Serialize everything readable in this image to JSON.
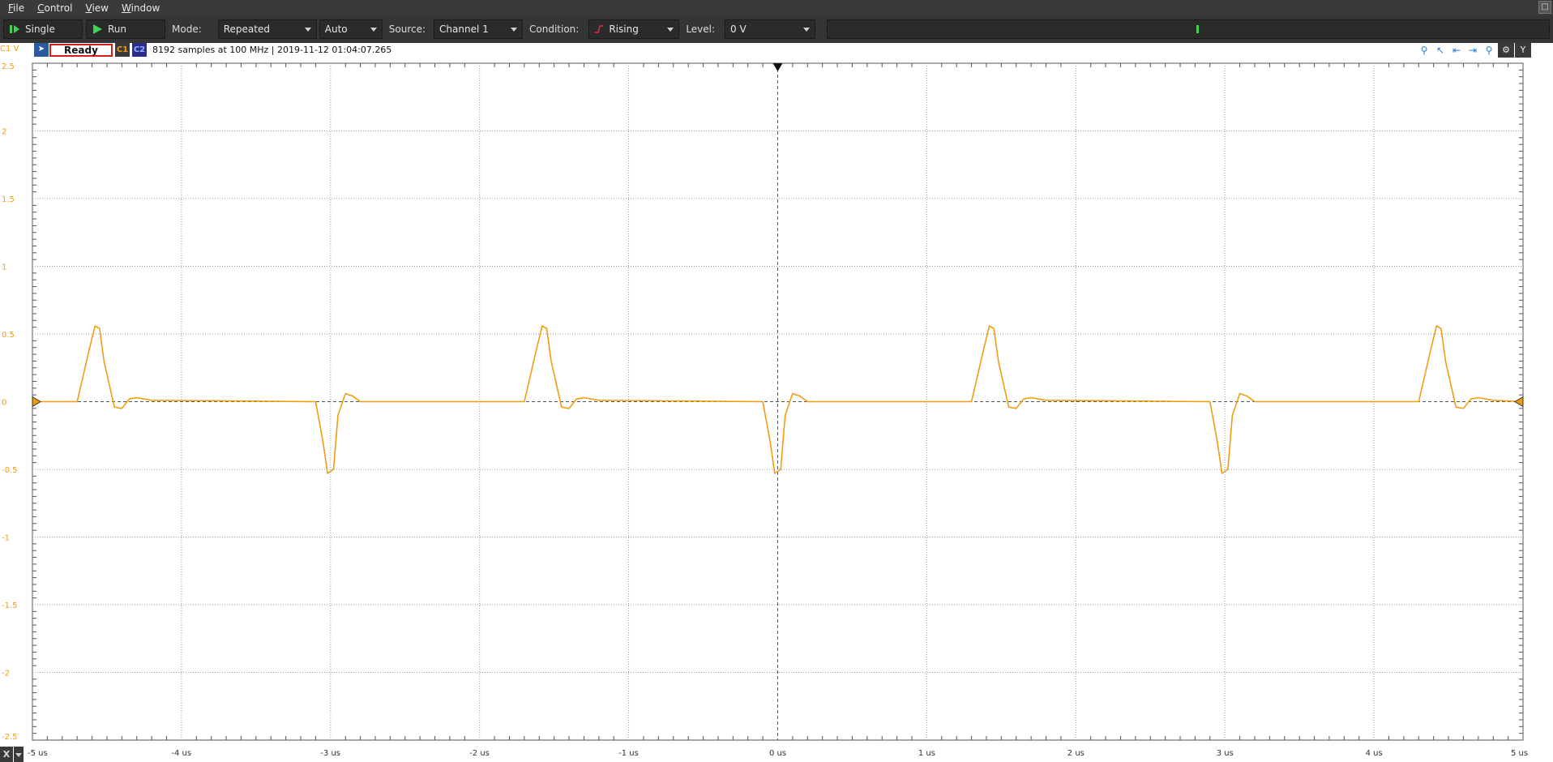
{
  "menubar": {
    "items": [
      {
        "label": "File",
        "mnemonic": "F",
        "rest": "ile"
      },
      {
        "label": "Control",
        "mnemonic": "C",
        "rest": "ontrol"
      },
      {
        "label": "View",
        "mnemonic": "V",
        "rest": "iew"
      },
      {
        "label": "Window",
        "mnemonic": "W",
        "rest": "indow"
      }
    ]
  },
  "toolbar": {
    "single_label": "Single",
    "run_label": "Run",
    "mode_label": "Mode:",
    "mode_value": "Repeated",
    "auto_value": "Auto",
    "source_label": "Source:",
    "source_value": "Channel 1",
    "condition_label": "Condition:",
    "condition_value": "Rising",
    "level_label": "Level:",
    "level_value": "0 V"
  },
  "status": {
    "axis_label": "C1 V",
    "state": "Ready",
    "c1": "C1",
    "c2": "C2",
    "acquisition": "8192 samples at 100 MHz | 2019-11-12 01:04:07.265",
    "y_button": "Y"
  },
  "colors": {
    "trace": "#f39c12",
    "ready_border": "#d71a1a",
    "accent": "#2c5aa0"
  },
  "icons": {
    "single": "single-step-icon",
    "run": "play-icon",
    "condition": "rising-edge-icon",
    "zoom": [
      "zoom-in-icon",
      "cursor-zoom-icon",
      "horizontal-zoom-icon",
      "vertical-zoom-icon",
      "zoom-fit-icon",
      "gear-icon"
    ]
  },
  "chart_data": {
    "type": "line",
    "ylim": [
      -2.5,
      2.5
    ],
    "xlim": [
      -5,
      5
    ],
    "grid": true,
    "yticks": [
      "2.5",
      "2",
      "1.5",
      "1",
      "0.5",
      "0",
      "-0.5",
      "-1",
      "-1.5",
      "-2",
      "-2.5"
    ],
    "xticks": [
      "-5 us",
      "-4 us",
      "-3 us",
      "-2 us",
      "-1 us",
      "0 us",
      "1 us",
      "2 us",
      "3 us",
      "4 us",
      "5 us"
    ],
    "series": [
      {
        "x": [
          -5.0,
          -4.7,
          -4.62,
          -4.58,
          -4.55,
          -4.52,
          -4.45,
          -4.4,
          -4.35,
          -4.3,
          -4.2,
          -3.1,
          -3.05,
          -3.02,
          -2.98,
          -2.95,
          -2.9,
          -2.85,
          -2.8,
          -2.7,
          -2.6,
          -1.7,
          -1.62,
          -1.58,
          -1.55,
          -1.52,
          -1.45,
          -1.4,
          -1.35,
          -1.3,
          -1.2,
          -0.1,
          -0.05,
          -0.02,
          0.02,
          0.05,
          0.1,
          0.15,
          0.2,
          0.3,
          0.4,
          1.3,
          1.38,
          1.42,
          1.45,
          1.48,
          1.55,
          1.6,
          1.65,
          1.7,
          1.8,
          2.9,
          2.95,
          2.98,
          3.02,
          3.05,
          3.1,
          3.15,
          3.2,
          3.3,
          3.4,
          4.3,
          4.38,
          4.42,
          4.45,
          4.48,
          4.55,
          4.6,
          4.65,
          4.7,
          4.8,
          5.0
        ],
        "y": [
          0.0,
          0.0,
          0.38,
          0.56,
          0.54,
          0.3,
          -0.04,
          -0.05,
          0.02,
          0.03,
          0.01,
          0.0,
          -0.3,
          -0.53,
          -0.5,
          -0.1,
          0.06,
          0.04,
          0.0,
          0.0,
          0.0,
          0.0,
          0.38,
          0.56,
          0.54,
          0.3,
          -0.04,
          -0.05,
          0.02,
          0.03,
          0.01,
          0.0,
          -0.3,
          -0.53,
          -0.5,
          -0.1,
          0.06,
          0.04,
          0.0,
          0.0,
          0.0,
          0.0,
          0.38,
          0.56,
          0.54,
          0.3,
          -0.04,
          -0.05,
          0.02,
          0.03,
          0.01,
          0.0,
          -0.3,
          -0.53,
          -0.5,
          -0.1,
          0.06,
          0.04,
          0.0,
          0.0,
          0.0,
          0.0,
          0.38,
          0.56,
          0.54,
          0.3,
          -0.04,
          -0.05,
          0.02,
          0.03,
          0.01,
          0.0
        ]
      }
    ]
  }
}
